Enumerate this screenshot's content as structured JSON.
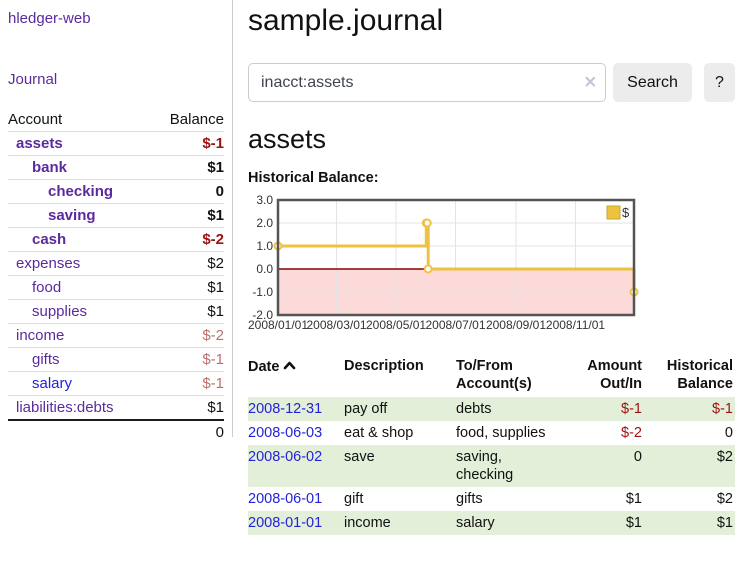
{
  "sidebar": {
    "app_title": "hledger-web",
    "journal_label": "Journal",
    "accounts_table": {
      "headers": {
        "account": "Account",
        "balance": "Balance"
      },
      "rows": [
        {
          "name": "assets",
          "indent": 0,
          "bold": true,
          "balance": "$-1",
          "balance_style": "neg-strong",
          "link_color": "purple"
        },
        {
          "name": "bank",
          "indent": 1,
          "bold": true,
          "balance": "$1",
          "balance_style": "pos",
          "link_color": "purple"
        },
        {
          "name": "checking",
          "indent": 2,
          "bold": true,
          "balance": "0",
          "balance_style": "pos",
          "link_color": "purple"
        },
        {
          "name": "saving",
          "indent": 2,
          "bold": true,
          "balance": "$1",
          "balance_style": "pos",
          "link_color": "purple"
        },
        {
          "name": "cash",
          "indent": 1,
          "bold": true,
          "balance": "$-2",
          "balance_style": "neg-strong",
          "link_color": "purple"
        },
        {
          "name": "expenses",
          "indent": 0,
          "bold": false,
          "balance": "$2",
          "balance_style": "pos",
          "link_color": "purple"
        },
        {
          "name": "food",
          "indent": 1,
          "bold": false,
          "balance": "$1",
          "balance_style": "pos",
          "link_color": "purple"
        },
        {
          "name": "supplies",
          "indent": 1,
          "bold": false,
          "balance": "$1",
          "balance_style": "pos",
          "link_color": "purple"
        },
        {
          "name": "income",
          "indent": 0,
          "bold": false,
          "balance": "$-2",
          "balance_style": "neg-soft",
          "link_color": "purple"
        },
        {
          "name": "gifts",
          "indent": 1,
          "bold": false,
          "balance": "$-1",
          "balance_style": "neg-soft",
          "link_color": "purple"
        },
        {
          "name": "salary",
          "indent": 1,
          "bold": false,
          "balance": "$-1",
          "balance_style": "neg-soft",
          "link_color": "blue"
        },
        {
          "name": "liabilities:debts",
          "indent": 0,
          "bold": false,
          "balance": "$1",
          "balance_style": "pos",
          "link_color": "purple"
        }
      ],
      "total": "0"
    }
  },
  "main": {
    "page_title": "sample.journal",
    "search": {
      "value": "inacct:assets",
      "clear_icon": "✕",
      "button_label": "Search",
      "help_label": "?"
    },
    "account_heading": "assets",
    "chart_heading": "Historical Balance:"
  },
  "chart_data": {
    "type": "line",
    "title": "Historical Balance",
    "steps": true,
    "series": [
      {
        "name": "$",
        "color": "#edc240",
        "points": [
          [
            "2008-01-01",
            1
          ],
          [
            "2008-06-01",
            2
          ],
          [
            "2008-06-02",
            2
          ],
          [
            "2008-06-03",
            0
          ],
          [
            "2008-12-31",
            -1
          ]
        ]
      }
    ],
    "x_range": [
      "2008-01-01",
      "2008-12-31"
    ],
    "ylim": [
      -2,
      3
    ],
    "yticks": [
      {
        "v": 3,
        "label": "3.0"
      },
      {
        "v": 2,
        "label": "2.0"
      },
      {
        "v": 1,
        "label": "1.0"
      },
      {
        "v": 0,
        "label": "0.0"
      },
      {
        "v": -1,
        "label": "-1.0"
      },
      {
        "v": -2,
        "label": "-2.0"
      }
    ],
    "xticks": [
      {
        "date": "2008-01-01",
        "label": "2008/01/01"
      },
      {
        "date": "2008-03-01",
        "label": "2008/03/01"
      },
      {
        "date": "2008-05-01",
        "label": "2008/05/01"
      },
      {
        "date": "2008-07-01",
        "label": "2008/07/01"
      },
      {
        "date": "2008-09-01",
        "label": "2008/09/01"
      },
      {
        "date": "2008-11-01",
        "label": "2008/11/01"
      }
    ],
    "legend": {
      "position": "top-right",
      "label": "$"
    },
    "grid": true,
    "colors": {
      "zero_line": "#8b0000",
      "negative_fill": "#fcdada",
      "gridline": "#e3e3e3",
      "border": "#545454",
      "marker_fill": "#ffffff",
      "legend_swatch_border": "#c9a52f",
      "tick_text": "#333333"
    }
  },
  "transactions": {
    "headers": {
      "date": "Date",
      "description": "Description",
      "tofrom": "To/From Account(s)",
      "amount": "Amount Out/In",
      "balance": "Historical Balance"
    },
    "sort_icon": "chevron-up",
    "rows": [
      {
        "date": "2008-12-31",
        "description": "pay off",
        "accounts": "debts",
        "amount": "$-1",
        "amount_neg": true,
        "balance": "$-1",
        "balance_neg": true,
        "shaded": true
      },
      {
        "date": "2008-06-03",
        "description": "eat & shop",
        "accounts": "food, supplies",
        "amount": "$-2",
        "amount_neg": true,
        "balance": "0",
        "balance_neg": false,
        "shaded": false
      },
      {
        "date": "2008-06-02",
        "description": "save",
        "accounts": "saving, checking",
        "amount": "0",
        "amount_neg": false,
        "balance": "$2",
        "balance_neg": false,
        "shaded": true
      },
      {
        "date": "2008-06-01",
        "description": "gift",
        "accounts": "gifts",
        "amount": "$1",
        "amount_neg": false,
        "balance": "$2",
        "balance_neg": false,
        "shaded": false
      },
      {
        "date": "2008-01-01",
        "description": "income",
        "accounts": "salary",
        "amount": "$1",
        "amount_neg": false,
        "balance": "$1",
        "balance_neg": false,
        "shaded": true
      }
    ]
  }
}
